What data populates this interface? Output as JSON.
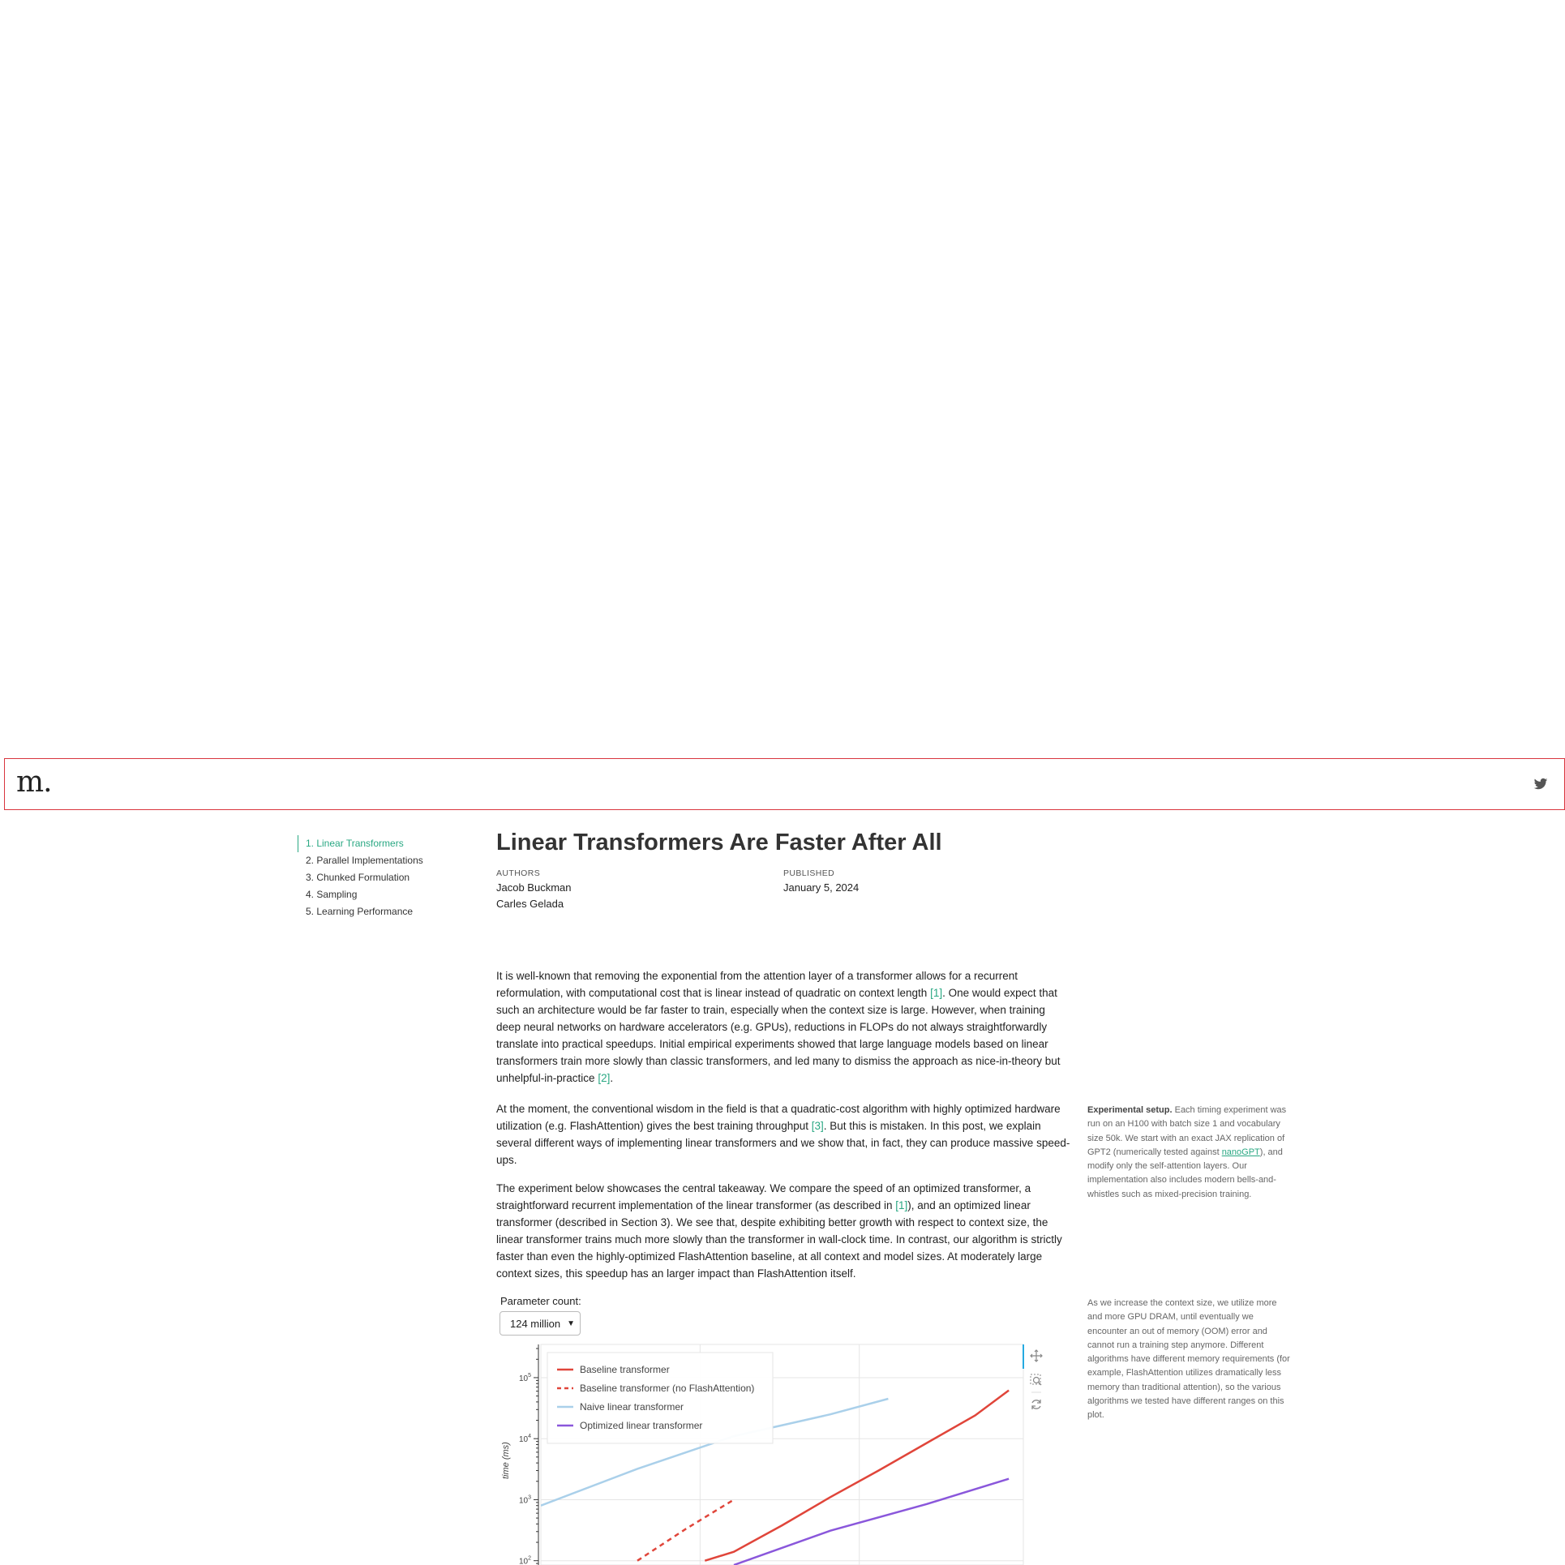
{
  "header": {
    "logo": "m.",
    "twitter_icon": "twitter-icon"
  },
  "toc": {
    "items": [
      {
        "label": "1. Linear Transformers",
        "active": true
      },
      {
        "label": "2. Parallel Implementations"
      },
      {
        "label": "3. Chunked Formulation"
      },
      {
        "label": "4. Sampling"
      },
      {
        "label": "5. Learning Performance"
      }
    ]
  },
  "article": {
    "title": "Linear Transformers Are Faster After All",
    "authors_label": "AUTHORS",
    "authors": [
      "Jacob Buckman",
      "Carles Gelada"
    ],
    "published_label": "PUBLISHED",
    "published": "January 5, 2024",
    "p1": {
      "a": "It is well-known that removing the exponential from the attention layer of a transformer allows for a recurrent reformulation, with computational cost that is linear instead of quadratic on context length ",
      "c1": "[1]",
      "b": ". One would expect that such an architecture would be far faster to train, especially when the context size is large. However, when training deep neural networks on hardware accelerators (e.g. GPUs), reductions in FLOPs do not always straightforwardly translate into practical speedups. Initial empirical experiments showed that large language models based on linear transformers train more slowly than classic transformers, and led many to dismiss the approach as nice-in-theory but unhelpful-in-practice ",
      "c2": "[2]",
      "c": "."
    },
    "p2": {
      "a": "At the moment, the conventional wisdom in the field is that a quadratic-cost algorithm with highly optimized hardware utilization (e.g. FlashAttention) gives the best training throughput ",
      "c1": "[3]",
      "b": ". But this is mistaken. In this post, we explain several different ways of implementing linear transformers and we show that, in fact, they can produce massive speed-ups."
    },
    "p3": {
      "a": "The experiment below showcases the central takeaway. We compare the speed of an optimized transformer, a straightforward recurrent implementation of the linear transformer (as described in ",
      "c1": "[1]",
      "b": "), and an optimized linear transformer (described in Section 3). We see that, despite exhibiting better growth with respect to context size, the linear transformer trains much more slowly than the transformer in wall-clock time. In contrast, our algorithm is strictly faster than even the highly-optimized FlashAttention baseline, at all context and model sizes. At moderately large context sizes, this speedup has an larger impact than FlashAttention itself."
    },
    "sidenote1": {
      "bold": "Experimental setup.",
      "a": " Each timing experiment was run on an H100 with batch size 1 and vocabulary size 50k. We start with an exact JAX replication of GPT2 (numerically tested against ",
      "link": "nanoGPT",
      "b": "), and modify only the self-attention layers. Our implementation also includes modern bells-and-whistles such as mixed-precision training."
    },
    "sidenote2": "As we increase the context size, we utilize more and more GPU DRAM, until eventually we encounter an out of memory (OOM) error and cannot run a training step anymore. Different algorithms have different memory requirements (for example, FlashAttention utilizes dramatically less memory than traditional attention), so the various algorithms we tested have different ranges on this plot."
  },
  "controls": {
    "param_label": "Parameter count:",
    "param_value": "124 million"
  },
  "chart_data": {
    "type": "line",
    "y_scale": "log",
    "ylabel": "time (ms)",
    "y_ticks": [
      100,
      1000,
      10000,
      100000
    ],
    "ylim": [
      85,
      350000
    ],
    "x_range": [
      0,
      1
    ],
    "grid": true,
    "legend_position": "top-left",
    "series": [
      {
        "name": "Baseline transformer",
        "color": "#e0453a",
        "dash": false,
        "points": [
          [
            0.34,
            100
          ],
          [
            0.4,
            140
          ],
          [
            0.5,
            380
          ],
          [
            0.6,
            1100
          ],
          [
            0.7,
            3000
          ],
          [
            0.8,
            8500
          ],
          [
            0.9,
            24000
          ],
          [
            0.97,
            62000
          ]
        ]
      },
      {
        "name": "Baseline transformer (no FlashAttention)",
        "color": "#e0453a",
        "dash": true,
        "points": [
          [
            0.2,
            100
          ],
          [
            0.3,
            330
          ],
          [
            0.4,
            1000
          ]
        ]
      },
      {
        "name": "Naive linear transformer",
        "color": "#aad0ea",
        "dash": false,
        "points": [
          [
            0,
            800
          ],
          [
            0.2,
            3200
          ],
          [
            0.4,
            11000
          ],
          [
            0.6,
            25000
          ],
          [
            0.72,
            45000
          ]
        ]
      },
      {
        "name": "Optimized linear transformer",
        "color": "#8a57db",
        "dash": false,
        "points": [
          [
            0.4,
            85
          ],
          [
            0.6,
            310
          ],
          [
            0.8,
            850
          ],
          [
            0.97,
            2200
          ]
        ]
      }
    ]
  }
}
